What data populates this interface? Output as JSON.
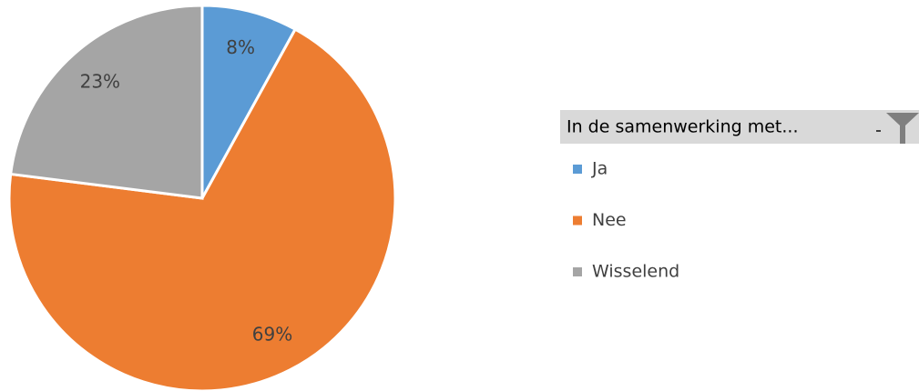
{
  "chart_data": {
    "type": "pie",
    "legend_title": "In de samenwerking met...",
    "categories": [
      "Ja",
      "Nee",
      "Wisselend"
    ],
    "values": [
      8,
      69,
      23
    ],
    "value_labels": [
      "8%",
      "69%",
      "23%"
    ],
    "colors": [
      "#5b9bd5",
      "#ed7d31",
      "#a5a5a5"
    ],
    "legend": "right"
  }
}
